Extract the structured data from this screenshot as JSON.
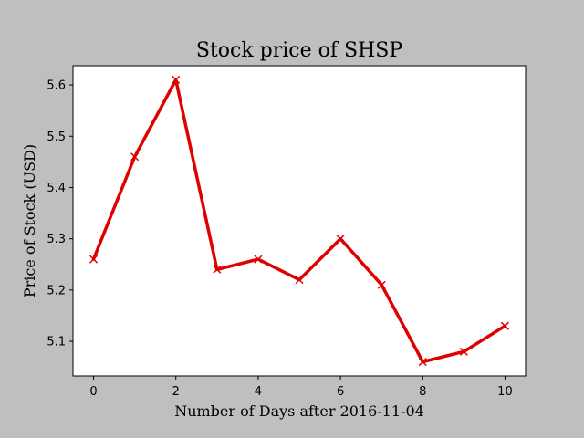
{
  "chart_data": {
    "type": "line",
    "title": "Stock price of SHSP",
    "xlabel": "Number of Days after 2016-11-04",
    "ylabel": "Price of Stock (USD)",
    "x": [
      0,
      1,
      2,
      3,
      4,
      5,
      6,
      7,
      8,
      9,
      10
    ],
    "series": [
      {
        "values": [
          5.26,
          5.46,
          5.61,
          5.24,
          5.26,
          5.22,
          5.3,
          5.21,
          5.06,
          5.08,
          5.13
        ],
        "color": "#e00000",
        "marker": "x"
      }
    ],
    "xticks": [
      "0",
      "2",
      "4",
      "6",
      "8",
      "10"
    ],
    "yticks": [
      "5.1",
      "5.2",
      "5.3",
      "5.4",
      "5.5",
      "5.6"
    ],
    "xlim": [
      -0.5,
      10.5
    ],
    "ylim": [
      5.0325,
      5.6375
    ],
    "grid": false,
    "background": "#bfbfbf",
    "plot_background": "#ffffff"
  }
}
